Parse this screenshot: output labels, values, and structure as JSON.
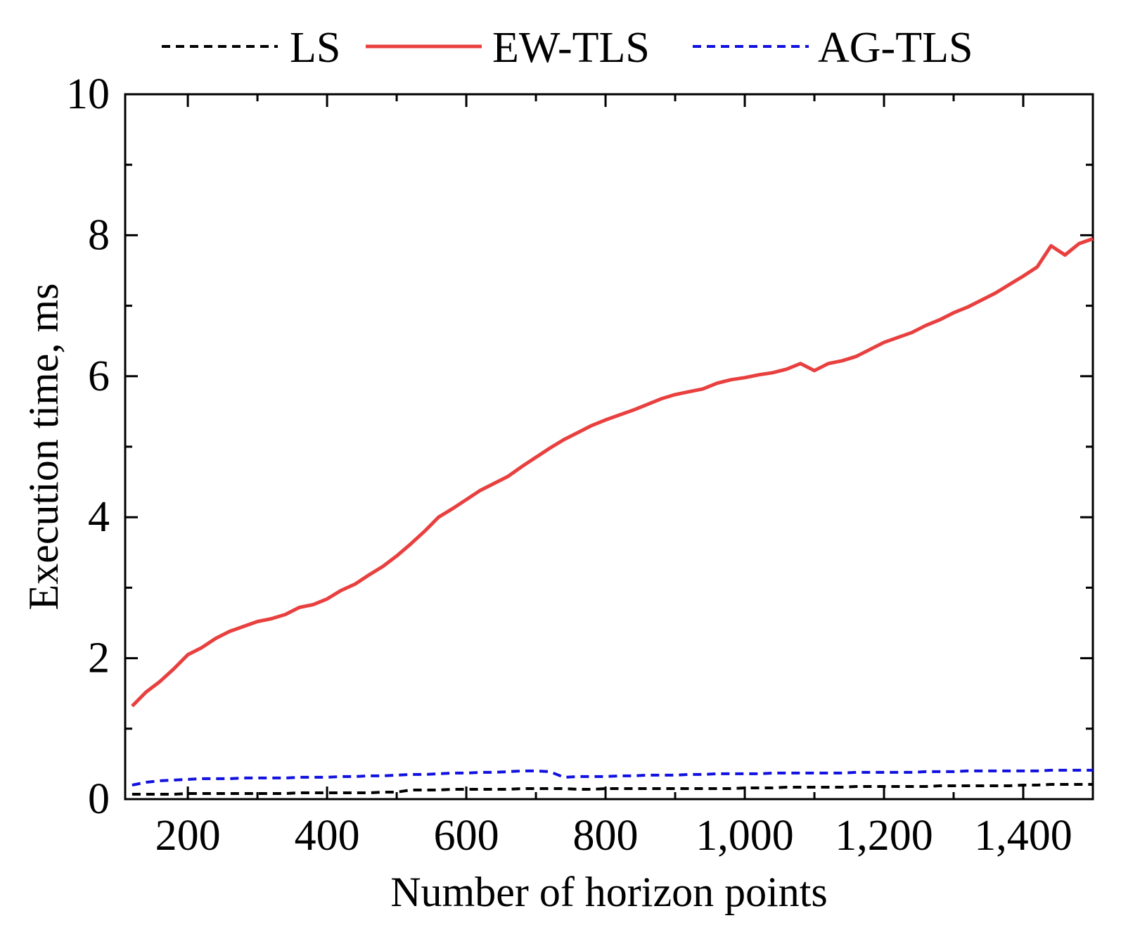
{
  "chart_data": {
    "type": "line",
    "title": "",
    "xlabel": "Number of horizon points",
    "ylabel": "Execution time, ms",
    "xlim": [
      110,
      1500
    ],
    "ylim": [
      0,
      10
    ],
    "x_ticks": [
      200,
      400,
      600,
      800,
      1000,
      1200,
      1400
    ],
    "x_tick_labels": [
      "200",
      "400",
      "600",
      "800",
      "1,000",
      "1,200",
      "1,400"
    ],
    "y_ticks": [
      0,
      2,
      4,
      6,
      8,
      10
    ],
    "y_tick_labels": [
      "0",
      "2",
      "4",
      "6",
      "8",
      "10"
    ],
    "grid": false,
    "legend_position": "top",
    "x": [
      120,
      140,
      160,
      180,
      200,
      220,
      240,
      260,
      280,
      300,
      320,
      340,
      360,
      380,
      400,
      420,
      440,
      460,
      480,
      500,
      520,
      540,
      560,
      580,
      600,
      620,
      640,
      660,
      680,
      700,
      720,
      740,
      760,
      780,
      800,
      820,
      840,
      860,
      880,
      900,
      920,
      940,
      960,
      980,
      1000,
      1020,
      1040,
      1060,
      1080,
      1100,
      1120,
      1140,
      1160,
      1180,
      1200,
      1220,
      1240,
      1260,
      1280,
      1300,
      1320,
      1340,
      1360,
      1380,
      1400,
      1420,
      1440,
      1460,
      1480,
      1500
    ],
    "series": [
      {
        "name": "LS",
        "color": "#000000",
        "style": "dashed",
        "values": [
          0.07,
          0.07,
          0.07,
          0.07,
          0.08,
          0.08,
          0.08,
          0.08,
          0.08,
          0.08,
          0.08,
          0.08,
          0.09,
          0.09,
          0.09,
          0.09,
          0.09,
          0.09,
          0.1,
          0.1,
          0.13,
          0.13,
          0.13,
          0.14,
          0.14,
          0.14,
          0.14,
          0.14,
          0.15,
          0.15,
          0.15,
          0.15,
          0.14,
          0.14,
          0.15,
          0.15,
          0.15,
          0.15,
          0.15,
          0.15,
          0.15,
          0.15,
          0.15,
          0.15,
          0.16,
          0.16,
          0.16,
          0.17,
          0.17,
          0.17,
          0.17,
          0.17,
          0.18,
          0.18,
          0.18,
          0.18,
          0.18,
          0.18,
          0.19,
          0.19,
          0.19,
          0.19,
          0.19,
          0.19,
          0.2,
          0.2,
          0.21,
          0.21,
          0.21,
          0.21
        ]
      },
      {
        "name": "EW-TLS",
        "color": "#e8403f",
        "style": "solid",
        "values": [
          1.32,
          1.52,
          1.67,
          1.85,
          2.05,
          2.15,
          2.28,
          2.38,
          2.45,
          2.52,
          2.56,
          2.62,
          2.72,
          2.76,
          2.84,
          2.96,
          3.05,
          3.18,
          3.3,
          3.45,
          3.62,
          3.8,
          4.0,
          4.12,
          4.25,
          4.38,
          4.48,
          4.58,
          4.72,
          4.85,
          4.98,
          5.1,
          5.2,
          5.3,
          5.38,
          5.45,
          5.52,
          5.6,
          5.68,
          5.74,
          5.78,
          5.82,
          5.9,
          5.95,
          5.98,
          6.02,
          6.05,
          6.1,
          6.18,
          6.08,
          6.18,
          6.22,
          6.28,
          6.38,
          6.48,
          6.55,
          6.62,
          6.72,
          6.8,
          6.9,
          6.98,
          7.08,
          7.18,
          7.3,
          7.42,
          7.55,
          7.85,
          7.72,
          7.88,
          7.95
        ]
      },
      {
        "name": "AG-TLS",
        "color": "#1010e0",
        "style": "dashed",
        "values": [
          0.2,
          0.24,
          0.26,
          0.27,
          0.28,
          0.29,
          0.29,
          0.29,
          0.3,
          0.3,
          0.3,
          0.3,
          0.31,
          0.31,
          0.31,
          0.32,
          0.32,
          0.33,
          0.33,
          0.34,
          0.35,
          0.35,
          0.36,
          0.37,
          0.37,
          0.38,
          0.38,
          0.39,
          0.4,
          0.4,
          0.39,
          0.31,
          0.32,
          0.32,
          0.32,
          0.33,
          0.33,
          0.34,
          0.34,
          0.34,
          0.35,
          0.35,
          0.36,
          0.36,
          0.36,
          0.36,
          0.37,
          0.37,
          0.37,
          0.37,
          0.37,
          0.37,
          0.38,
          0.38,
          0.38,
          0.38,
          0.38,
          0.39,
          0.39,
          0.39,
          0.4,
          0.4,
          0.4,
          0.4,
          0.4,
          0.4,
          0.41,
          0.41,
          0.41,
          0.41
        ]
      }
    ]
  }
}
